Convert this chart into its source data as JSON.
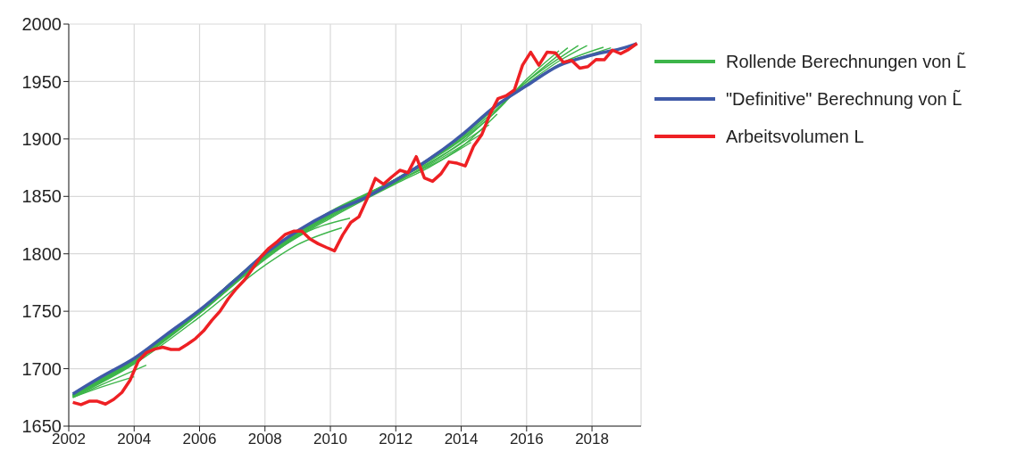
{
  "chart_data": {
    "type": "line",
    "xlim": [
      2002,
      2019.5
    ],
    "xticks": [
      2002,
      2004,
      2006,
      2008,
      2010,
      2012,
      2014,
      2016,
      2018
    ],
    "ylim": [
      1650,
      2000
    ],
    "yticks": [
      1650,
      1700,
      1750,
      1800,
      1850,
      1900,
      1950,
      2000
    ],
    "grid": true,
    "legend": "right",
    "marker": "none",
    "line_style": "solid",
    "series": [
      {
        "name": "Rollende Berechnungen von L̃",
        "color": "#3db54a",
        "x": [
          2002.125,
          2003,
          2004
        ],
        "values": [
          1675,
          1684,
          1693
        ]
      },
      {
        "color": "#3db54a",
        "x": [
          2002.125,
          2003,
          2004.37
        ],
        "values": [
          1675,
          1686,
          1703
        ]
      },
      {
        "color": "#3db54a",
        "x": [
          2002.125,
          2004,
          2006,
          2008,
          2009,
          2010.35
        ],
        "values": [
          1675,
          1704,
          1745,
          1790,
          1808,
          1822.7
        ]
      },
      {
        "color": "#3db54a",
        "x": [
          2002.125,
          2004,
          2006,
          2008,
          2009,
          2010.6
        ],
        "values": [
          1676,
          1705,
          1748,
          1795,
          1815,
          1831
        ]
      },
      {
        "color": "#3db54a",
        "x": [
          2002.125,
          2004,
          2006,
          2008,
          2010,
          2012,
          2013,
          2014.3
        ],
        "values": [
          1676,
          1706,
          1748,
          1796,
          1831,
          1861,
          1875,
          1897
        ]
      },
      {
        "color": "#3db54a",
        "x": [
          2002.125,
          2004,
          2006,
          2008,
          2010,
          2012,
          2013,
          2014.6
        ],
        "values": [
          1676,
          1706,
          1749,
          1797,
          1832,
          1862,
          1877,
          1904
        ]
      },
      {
        "color": "#3db54a",
        "x": [
          2002.125,
          2004,
          2006,
          2008,
          2010,
          2012,
          2013,
          2014.85
        ],
        "values": [
          1676,
          1707,
          1749,
          1797,
          1833,
          1862,
          1878,
          1912.3
        ]
      },
      {
        "color": "#3db54a",
        "x": [
          2002.125,
          2004,
          2006,
          2008,
          2010,
          2012,
          2014,
          2015.1
        ],
        "values": [
          1677,
          1707,
          1750,
          1798,
          1834,
          1863,
          1893,
          1921.7
        ]
      },
      {
        "color": "#3db54a",
        "x": [
          2002.125,
          2004,
          2006,
          2008,
          2010,
          2012,
          2014,
          2015.35
        ],
        "values": [
          1677,
          1707,
          1750,
          1798,
          1834,
          1864,
          1897,
          1932
        ]
      },
      {
        "color": "#3db54a",
        "x": [
          2002.125,
          2004,
          2006,
          2008,
          2010,
          2012,
          2014,
          2015,
          2016,
          2016.99
        ],
        "values": [
          1677,
          1708,
          1750,
          1799,
          1835,
          1864,
          1899,
          1922,
          1952,
          1976.8
        ]
      },
      {
        "color": "#3db54a",
        "x": [
          2002.125,
          2004,
          2006,
          2008,
          2010,
          2012,
          2014,
          2015,
          2016,
          2017.26
        ],
        "values": [
          1677,
          1708,
          1751,
          1799,
          1835,
          1864,
          1900,
          1924,
          1950,
          1979.3
        ]
      },
      {
        "color": "#3db54a",
        "x": [
          2002.125,
          2004,
          2006,
          2008,
          2010,
          2012,
          2014,
          2015,
          2016,
          2017.58
        ],
        "values": [
          1677,
          1708,
          1751,
          1800,
          1836,
          1865,
          1901,
          1926,
          1950,
          1981.3
        ]
      },
      {
        "color": "#3db54a",
        "x": [
          2002.125,
          2004,
          2006,
          2008,
          2010,
          2012,
          2014,
          2015,
          2016,
          2017,
          2017.85
        ],
        "values": [
          1677,
          1708,
          1751,
          1800,
          1836,
          1865,
          1902,
          1927,
          1948,
          1968,
          1981.3
        ]
      },
      {
        "color": "#3db54a",
        "x": [
          2002.125,
          2004,
          2006,
          2008,
          2010,
          2012,
          2014,
          2015,
          2016,
          2017,
          2018.35
        ],
        "values": [
          1677,
          1709,
          1751,
          1800,
          1836,
          1865,
          1903,
          1927,
          1947,
          1965,
          1979.8
        ]
      },
      {
        "color": "#3db54a",
        "x": [
          2002.125,
          2004,
          2006,
          2008,
          2010,
          2012,
          2014,
          2015,
          2016,
          2017,
          2018,
          2018.58
        ],
        "values": [
          1677,
          1709,
          1751,
          1800,
          1837,
          1865,
          1903,
          1927,
          1946,
          1964,
          1974,
          1979.3
        ]
      },
      {
        "name": "\"Definitive\" Berechnung von L̃",
        "color": "#3f5aa8",
        "x": [
          2002.125,
          2003,
          2004,
          2005,
          2006,
          2007,
          2008,
          2009,
          2010,
          2011,
          2012,
          2013,
          2014,
          2015,
          2016,
          2017,
          2018,
          2019,
          2019.375
        ],
        "values": [
          1678,
          1693,
          1709,
          1730,
          1751,
          1775,
          1800,
          1820,
          1836,
          1848,
          1864,
          1882,
          1903,
          1927.5,
          1946.4,
          1964,
          1973,
          1979.5,
          1983
        ]
      },
      {
        "name": "Arbeitsvolumen L",
        "color": "#ee2024",
        "x": [
          2002.125,
          2002.375,
          2002.625,
          2002.875,
          2003.125,
          2003.375,
          2003.625,
          2003.875,
          2004.125,
          2004.375,
          2004.625,
          2004.875,
          2005.125,
          2005.375,
          2005.625,
          2005.875,
          2006.125,
          2006.375,
          2006.625,
          2006.875,
          2007.125,
          2007.375,
          2007.625,
          2007.875,
          2008.125,
          2008.375,
          2008.625,
          2008.875,
          2009.125,
          2009.375,
          2009.625,
          2009.875,
          2010.125,
          2010.375,
          2010.625,
          2010.875,
          2011.125,
          2011.375,
          2011.625,
          2011.875,
          2012.125,
          2012.375,
          2012.625,
          2012.875,
          2013.125,
          2013.375,
          2013.625,
          2013.875,
          2014.125,
          2014.375,
          2014.625,
          2014.875,
          2015.125,
          2015.375,
          2015.625,
          2015.875,
          2016.125,
          2016.375,
          2016.625,
          2016.875,
          2017.125,
          2017.375,
          2017.625,
          2017.875,
          2018.125,
          2018.375,
          2018.625,
          2018.875,
          2019.125,
          2019.375
        ],
        "values": [
          1670.7,
          1668.7,
          1671.7,
          1671.7,
          1669.2,
          1673.3,
          1679.3,
          1690,
          1706.6,
          1714,
          1717,
          1718.7,
          1716.7,
          1716.7,
          1721.2,
          1726.2,
          1733,
          1742,
          1750,
          1760.8,
          1769.7,
          1777.3,
          1787.3,
          1797.5,
          1805,
          1810.6,
          1817,
          1819.7,
          1819.7,
          1813,
          1808.8,
          1805.6,
          1802.6,
          1816.4,
          1827.3,
          1832.3,
          1848,
          1865.7,
          1860.6,
          1866.9,
          1872.7,
          1870.7,
          1884.6,
          1866.1,
          1863.1,
          1869.5,
          1880,
          1878.9,
          1876.5,
          1893.4,
          1903.5,
          1921.2,
          1935.1,
          1937.6,
          1942.6,
          1964.2,
          1975.5,
          1964.2,
          1975.5,
          1975,
          1966.7,
          1968.4,
          1961.6,
          1962.9,
          1969.2,
          1968.9,
          1977.3,
          1974.2,
          1978,
          1983.1
        ]
      }
    ]
  }
}
